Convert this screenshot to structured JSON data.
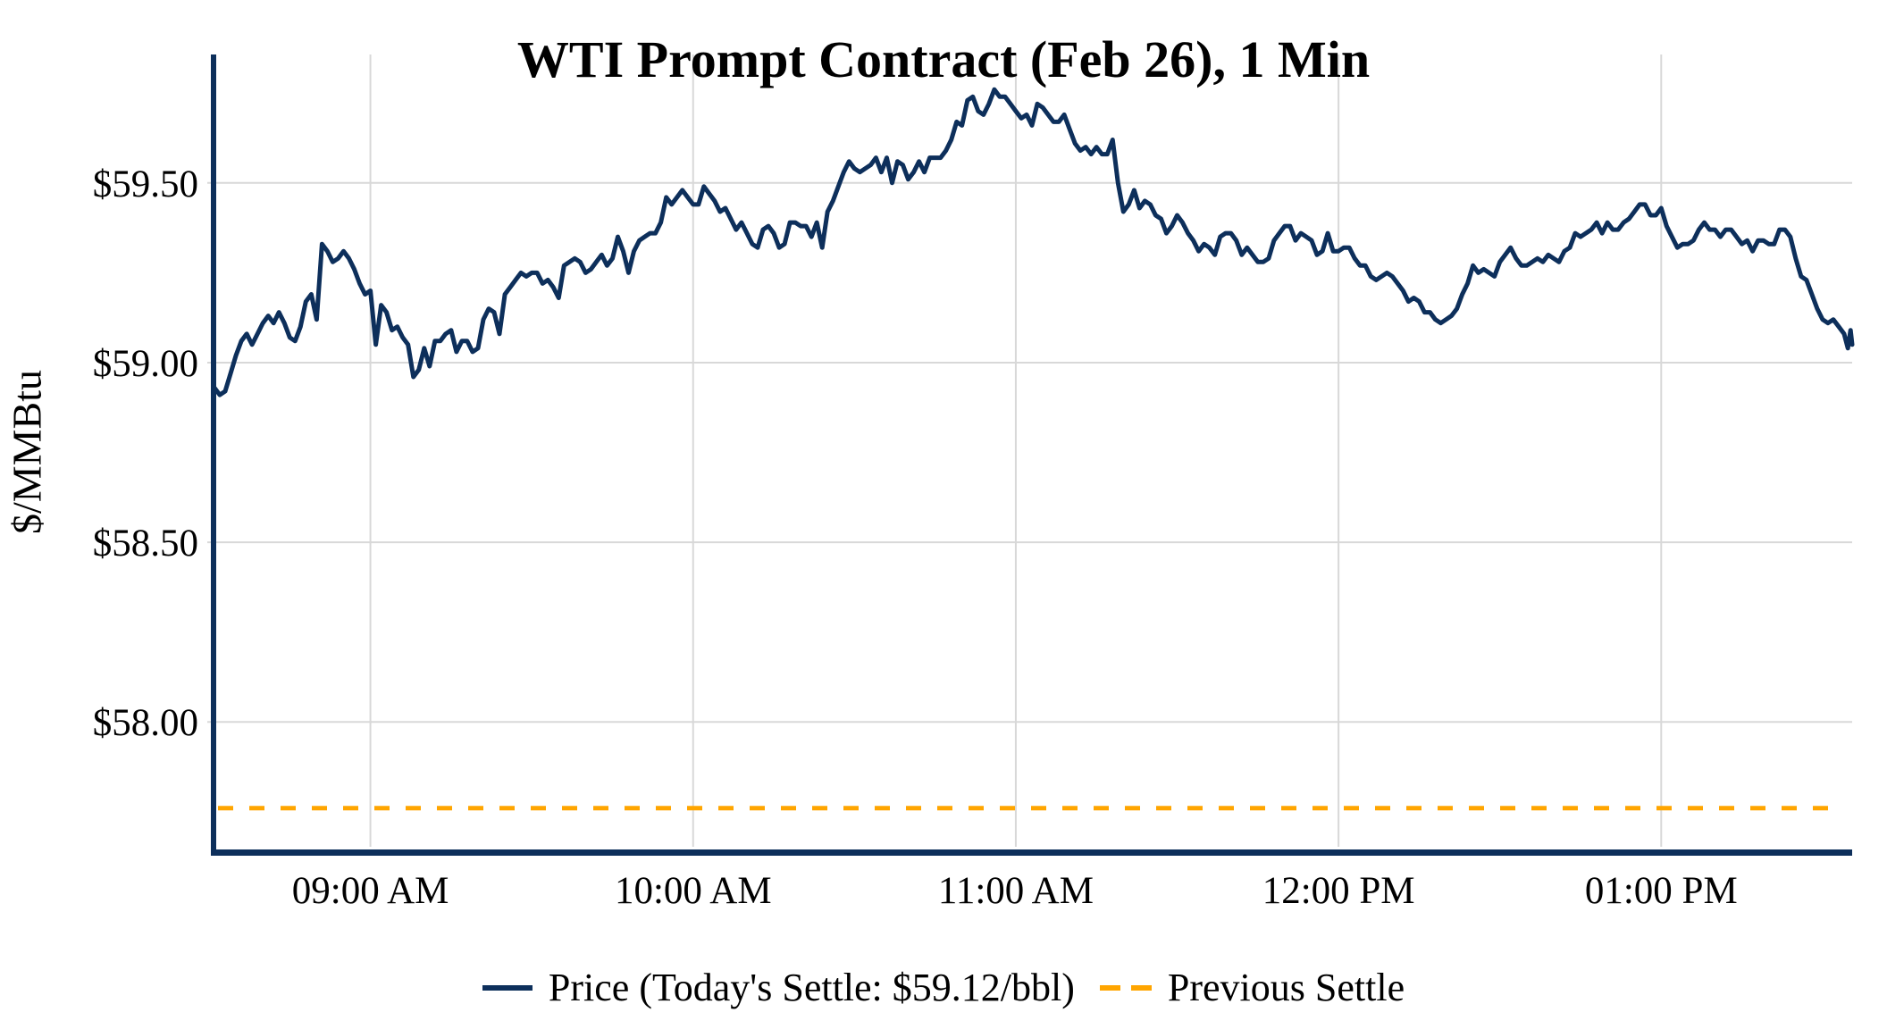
{
  "title": "WTI Prompt Contract (Feb 26), 1 Min",
  "y_axis": {
    "label": "$/MMBtu"
  },
  "legend": {
    "price_label": "Price (Today's Settle: $59.12/bbl)",
    "prev_label": "Previous Settle"
  },
  "colors": {
    "price": "#0d2f5b",
    "previous_settle": "#ffa500",
    "grid": "#d8d8d8",
    "spine": "#0d2f5b",
    "text": "#000000"
  },
  "chart_data": {
    "type": "line",
    "title": "WTI Prompt Contract (Feb 26), 1 Min",
    "xlabel": "",
    "ylabel": "$/MMBtu",
    "ylim": [
      57.645,
      59.8575
    ],
    "xlim": [
      0,
      304.5
    ],
    "grid": true,
    "legend_position": "bottom-center",
    "todays_settle": 59.12,
    "previous_settle": 57.76,
    "yticks": [
      {
        "label": "$59.50",
        "value": 59.5
      },
      {
        "label": "$59.00",
        "value": 59.0
      },
      {
        "label": "$58.50",
        "value": 58.5
      },
      {
        "label": "$58.00",
        "value": 58.0
      }
    ],
    "xticks": [
      {
        "label": "09:00 AM",
        "t": 29
      },
      {
        "label": "10:00 AM",
        "t": 89
      },
      {
        "label": "11:00 AM",
        "t": 149
      },
      {
        "label": "12:00 PM",
        "t": 209
      },
      {
        "label": "01:00 PM",
        "t": 269
      }
    ],
    "series_name": "Price (Today's Settle: $59.12/bbl)",
    "prev_series_name": "Previous Settle",
    "points": [
      [
        0,
        58.93
      ],
      [
        1,
        58.91
      ],
      [
        2,
        58.92
      ],
      [
        3,
        58.97
      ],
      [
        4,
        59.02
      ],
      [
        5,
        59.06
      ],
      [
        6,
        59.08
      ],
      [
        7,
        59.05
      ],
      [
        8,
        59.08
      ],
      [
        9,
        59.11
      ],
      [
        10,
        59.13
      ],
      [
        11,
        59.11
      ],
      [
        12,
        59.14
      ],
      [
        13,
        59.11
      ],
      [
        14,
        59.07
      ],
      [
        15,
        59.06
      ],
      [
        16,
        59.1
      ],
      [
        17,
        59.17
      ],
      [
        18,
        59.19
      ],
      [
        19,
        59.12
      ],
      [
        20,
        59.33
      ],
      [
        21,
        59.31
      ],
      [
        22,
        59.28
      ],
      [
        23,
        59.29
      ],
      [
        24,
        59.31
      ],
      [
        25,
        59.29
      ],
      [
        26,
        59.26
      ],
      [
        27,
        59.22
      ],
      [
        28,
        59.19
      ],
      [
        29,
        59.2
      ],
      [
        30,
        59.05
      ],
      [
        31,
        59.16
      ],
      [
        32,
        59.14
      ],
      [
        33,
        59.09
      ],
      [
        34,
        59.1
      ],
      [
        35,
        59.07
      ],
      [
        36,
        59.05
      ],
      [
        37,
        58.96
      ],
      [
        38,
        58.98
      ],
      [
        39,
        59.04
      ],
      [
        40,
        58.99
      ],
      [
        41,
        59.06
      ],
      [
        42,
        59.06
      ],
      [
        43,
        59.08
      ],
      [
        44,
        59.09
      ],
      [
        45,
        59.03
      ],
      [
        46,
        59.06
      ],
      [
        47,
        59.06
      ],
      [
        48,
        59.03
      ],
      [
        49,
        59.04
      ],
      [
        50,
        59.12
      ],
      [
        51,
        59.15
      ],
      [
        52,
        59.14
      ],
      [
        53,
        59.08
      ],
      [
        54,
        59.19
      ],
      [
        55,
        59.21
      ],
      [
        56,
        59.23
      ],
      [
        57,
        59.25
      ],
      [
        58,
        59.24
      ],
      [
        59,
        59.25
      ],
      [
        60,
        59.25
      ],
      [
        61,
        59.22
      ],
      [
        62,
        59.23
      ],
      [
        63,
        59.21
      ],
      [
        64,
        59.18
      ],
      [
        65,
        59.27
      ],
      [
        66,
        59.28
      ],
      [
        67,
        59.29
      ],
      [
        68,
        59.28
      ],
      [
        69,
        59.25
      ],
      [
        70,
        59.26
      ],
      [
        71,
        59.28
      ],
      [
        72,
        59.3
      ],
      [
        73,
        59.27
      ],
      [
        74,
        59.29
      ],
      [
        75,
        59.35
      ],
      [
        76,
        59.31
      ],
      [
        77,
        59.25
      ],
      [
        78,
        59.31
      ],
      [
        79,
        59.34
      ],
      [
        80,
        59.35
      ],
      [
        81,
        59.36
      ],
      [
        82,
        59.36
      ],
      [
        83,
        59.39
      ],
      [
        84,
        59.46
      ],
      [
        85,
        59.44
      ],
      [
        86,
        59.46
      ],
      [
        87,
        59.48
      ],
      [
        88,
        59.46
      ],
      [
        89,
        59.44
      ],
      [
        90,
        59.44
      ],
      [
        91,
        59.49
      ],
      [
        92,
        59.47
      ],
      [
        93,
        59.45
      ],
      [
        94,
        59.42
      ],
      [
        95,
        59.43
      ],
      [
        96,
        59.4
      ],
      [
        97,
        59.37
      ],
      [
        98,
        59.39
      ],
      [
        99,
        59.36
      ],
      [
        100,
        59.33
      ],
      [
        101,
        59.32
      ],
      [
        102,
        59.37
      ],
      [
        103,
        59.38
      ],
      [
        104,
        59.36
      ],
      [
        105,
        59.32
      ],
      [
        106,
        59.33
      ],
      [
        107,
        59.39
      ],
      [
        108,
        59.39
      ],
      [
        109,
        59.38
      ],
      [
        110,
        59.38
      ],
      [
        111,
        59.35
      ],
      [
        112,
        59.39
      ],
      [
        113,
        59.32
      ],
      [
        114,
        59.42
      ],
      [
        115,
        59.45
      ],
      [
        116,
        59.49
      ],
      [
        117,
        59.53
      ],
      [
        118,
        59.56
      ],
      [
        119,
        59.54
      ],
      [
        120,
        59.53
      ],
      [
        121,
        59.54
      ],
      [
        122,
        59.55
      ],
      [
        123,
        59.57
      ],
      [
        124,
        59.53
      ],
      [
        125,
        59.57
      ],
      [
        126,
        59.5
      ],
      [
        127,
        59.56
      ],
      [
        128,
        59.55
      ],
      [
        129,
        59.51
      ],
      [
        130,
        59.53
      ],
      [
        131,
        59.56
      ],
      [
        132,
        59.53
      ],
      [
        133,
        59.57
      ],
      [
        134,
        59.57
      ],
      [
        135,
        59.57
      ],
      [
        136,
        59.59
      ],
      [
        137,
        59.62
      ],
      [
        138,
        59.67
      ],
      [
        139,
        59.66
      ],
      [
        140,
        59.73
      ],
      [
        141,
        59.74
      ],
      [
        142,
        59.7
      ],
      [
        143,
        59.69
      ],
      [
        144,
        59.72
      ],
      [
        145,
        59.76
      ],
      [
        146,
        59.74
      ],
      [
        147,
        59.74
      ],
      [
        148,
        59.72
      ],
      [
        149,
        59.7
      ],
      [
        150,
        59.68
      ],
      [
        151,
        59.69
      ],
      [
        152,
        59.66
      ],
      [
        153,
        59.72
      ],
      [
        154,
        59.71
      ],
      [
        155,
        59.69
      ],
      [
        156,
        59.67
      ],
      [
        157,
        59.67
      ],
      [
        158,
        59.69
      ],
      [
        159,
        59.65
      ],
      [
        160,
        59.61
      ],
      [
        161,
        59.59
      ],
      [
        162,
        59.6
      ],
      [
        163,
        59.58
      ],
      [
        164,
        59.6
      ],
      [
        165,
        59.58
      ],
      [
        166,
        59.58
      ],
      [
        167,
        59.62
      ],
      [
        168,
        59.5
      ],
      [
        169,
        59.42
      ],
      [
        170,
        59.44
      ],
      [
        171,
        59.48
      ],
      [
        172,
        59.43
      ],
      [
        173,
        59.45
      ],
      [
        174,
        59.44
      ],
      [
        175,
        59.41
      ],
      [
        176,
        59.4
      ],
      [
        177,
        59.36
      ],
      [
        178,
        59.38
      ],
      [
        179,
        59.41
      ],
      [
        180,
        59.39
      ],
      [
        181,
        59.36
      ],
      [
        182,
        59.34
      ],
      [
        183,
        59.31
      ],
      [
        184,
        59.33
      ],
      [
        185,
        59.32
      ],
      [
        186,
        59.3
      ],
      [
        187,
        59.35
      ],
      [
        188,
        59.36
      ],
      [
        189,
        59.36
      ],
      [
        190,
        59.34
      ],
      [
        191,
        59.3
      ],
      [
        192,
        59.32
      ],
      [
        193,
        59.3
      ],
      [
        194,
        59.28
      ],
      [
        195,
        59.28
      ],
      [
        196,
        59.29
      ],
      [
        197,
        59.34
      ],
      [
        198,
        59.36
      ],
      [
        199,
        59.38
      ],
      [
        200,
        59.38
      ],
      [
        201,
        59.34
      ],
      [
        202,
        59.36
      ],
      [
        203,
        59.35
      ],
      [
        204,
        59.34
      ],
      [
        205,
        59.3
      ],
      [
        206,
        59.31
      ],
      [
        207,
        59.36
      ],
      [
        208,
        59.31
      ],
      [
        209,
        59.31
      ],
      [
        210,
        59.32
      ],
      [
        211,
        59.32
      ],
      [
        212,
        59.29
      ],
      [
        213,
        59.27
      ],
      [
        214,
        59.27
      ],
      [
        215,
        59.24
      ],
      [
        216,
        59.23
      ],
      [
        217,
        59.24
      ],
      [
        218,
        59.25
      ],
      [
        219,
        59.24
      ],
      [
        220,
        59.22
      ],
      [
        221,
        59.2
      ],
      [
        222,
        59.17
      ],
      [
        223,
        59.18
      ],
      [
        224,
        59.17
      ],
      [
        225,
        59.14
      ],
      [
        226,
        59.14
      ],
      [
        227,
        59.12
      ],
      [
        228,
        59.11
      ],
      [
        229,
        59.12
      ],
      [
        230,
        59.13
      ],
      [
        231,
        59.15
      ],
      [
        232,
        59.19
      ],
      [
        233,
        59.22
      ],
      [
        234,
        59.27
      ],
      [
        235,
        59.25
      ],
      [
        236,
        59.26
      ],
      [
        237,
        59.25
      ],
      [
        238,
        59.24
      ],
      [
        239,
        59.28
      ],
      [
        240,
        59.3
      ],
      [
        241,
        59.32
      ],
      [
        242,
        59.29
      ],
      [
        243,
        59.27
      ],
      [
        244,
        59.27
      ],
      [
        245,
        59.28
      ],
      [
        246,
        59.29
      ],
      [
        247,
        59.28
      ],
      [
        248,
        59.3
      ],
      [
        249,
        59.29
      ],
      [
        250,
        59.28
      ],
      [
        251,
        59.31
      ],
      [
        252,
        59.32
      ],
      [
        253,
        59.36
      ],
      [
        254,
        59.35
      ],
      [
        255,
        59.36
      ],
      [
        256,
        59.37
      ],
      [
        257,
        59.39
      ],
      [
        258,
        59.36
      ],
      [
        259,
        59.39
      ],
      [
        260,
        59.37
      ],
      [
        261,
        59.37
      ],
      [
        262,
        59.39
      ],
      [
        263,
        59.4
      ],
      [
        264,
        59.42
      ],
      [
        265,
        59.44
      ],
      [
        266,
        59.44
      ],
      [
        267,
        59.41
      ],
      [
        268,
        59.41
      ],
      [
        269,
        59.43
      ],
      [
        270,
        59.38
      ],
      [
        271,
        59.35
      ],
      [
        272,
        59.32
      ],
      [
        273,
        59.33
      ],
      [
        274,
        59.33
      ],
      [
        275,
        59.34
      ],
      [
        276,
        59.37
      ],
      [
        277,
        59.39
      ],
      [
        278,
        59.37
      ],
      [
        279,
        59.37
      ],
      [
        280,
        59.35
      ],
      [
        281,
        59.37
      ],
      [
        282,
        59.37
      ],
      [
        283,
        59.35
      ],
      [
        284,
        59.33
      ],
      [
        285,
        59.34
      ],
      [
        286,
        59.31
      ],
      [
        287,
        59.34
      ],
      [
        288,
        59.34
      ],
      [
        289,
        59.33
      ],
      [
        290,
        59.33
      ],
      [
        291,
        59.37
      ],
      [
        292,
        59.37
      ],
      [
        293,
        59.35
      ],
      [
        294,
        59.29
      ],
      [
        295,
        59.24
      ],
      [
        296,
        59.23
      ],
      [
        297,
        59.19
      ],
      [
        298,
        59.15
      ],
      [
        299,
        59.12
      ],
      [
        300,
        59.11
      ],
      [
        301,
        59.12
      ],
      [
        302,
        59.1
      ],
      [
        303,
        59.08
      ],
      [
        303.7,
        59.04
      ],
      [
        304.2,
        59.09
      ],
      [
        304.5,
        59.05
      ]
    ]
  }
}
